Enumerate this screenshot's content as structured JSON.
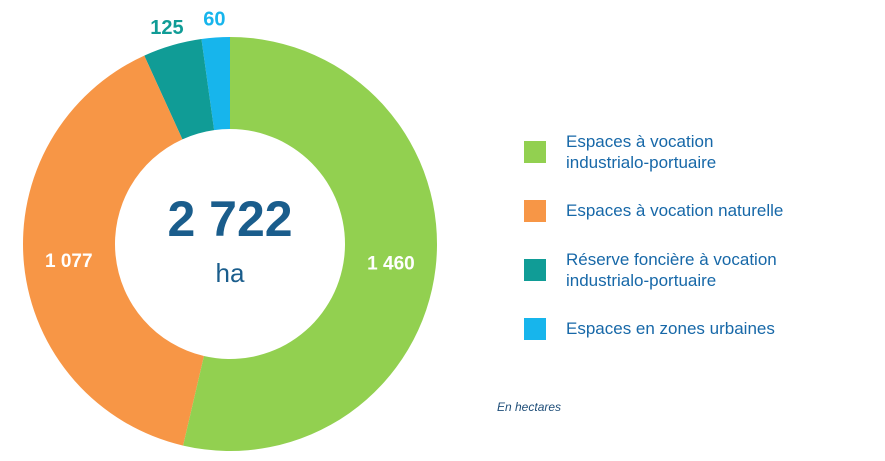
{
  "chart_data": {
    "type": "donut",
    "categories": [
      "Espaces à vocation industrialo-portuaire",
      "Espaces à vocation naturelle",
      "Réserve foncière à vocation industrialo-portuaire",
      "Espaces en zones urbaines"
    ],
    "values": [
      1460,
      1077,
      125,
      60
    ],
    "value_labels": [
      "1 460",
      "1 077",
      "125",
      "60"
    ],
    "colors": [
      "#92d050",
      "#f79646",
      "#109c96",
      "#17b5ec"
    ],
    "center_label": "2 722",
    "center_unit": "ha",
    "note": "En hectares"
  }
}
